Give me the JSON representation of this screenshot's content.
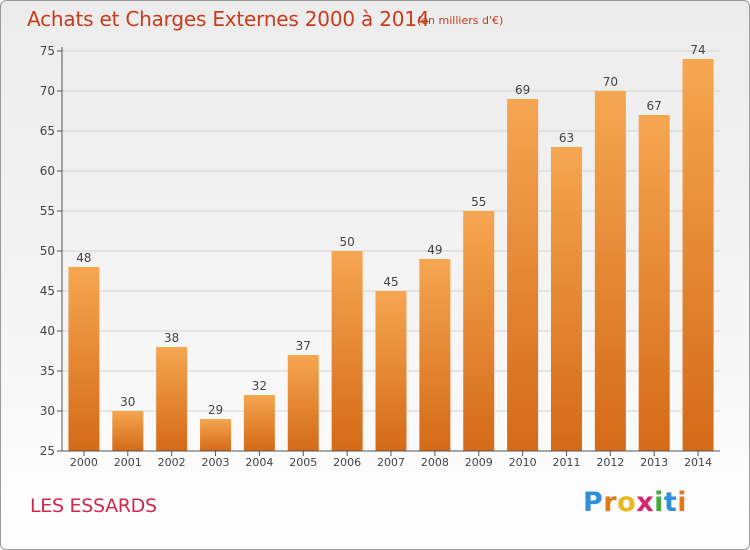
{
  "header": {
    "title": "Achats et Charges Externes 2000 à 2014",
    "subtitle": "(en milliers d'€)"
  },
  "footer": {
    "commune": "LES ESSARDS",
    "logo_letters": [
      "P",
      "r",
      "o",
      "x",
      "i",
      "t",
      "i"
    ],
    "logo_colors": [
      "#2f8fd8",
      "#e07a1a",
      "#e8b820",
      "#d6246e",
      "#4aa83c",
      "#2f8fd8",
      "#e07a1a"
    ]
  },
  "colors": {
    "bar_top": "#f6a651",
    "bar_bottom": "#d46a17",
    "grid": "#d2d2d2",
    "axis": "#555555",
    "title": "#c63c1c"
  },
  "chart_data": {
    "type": "bar",
    "title": "Achats et Charges Externes 2000 à 2014",
    "subtitle": "(en milliers d'€)",
    "categories": [
      "2000",
      "2001",
      "2002",
      "2003",
      "2004",
      "2005",
      "2006",
      "2007",
      "2008",
      "2009",
      "2010",
      "2011",
      "2012",
      "2013",
      "2014"
    ],
    "values": [
      48,
      30,
      38,
      29,
      32,
      37,
      50,
      45,
      49,
      55,
      69,
      63,
      70,
      67,
      74
    ],
    "ylim": [
      25,
      75
    ],
    "yticks": [
      25,
      30,
      35,
      40,
      45,
      50,
      55,
      60,
      65,
      70,
      75
    ],
    "grid": true,
    "data_labels": true
  }
}
